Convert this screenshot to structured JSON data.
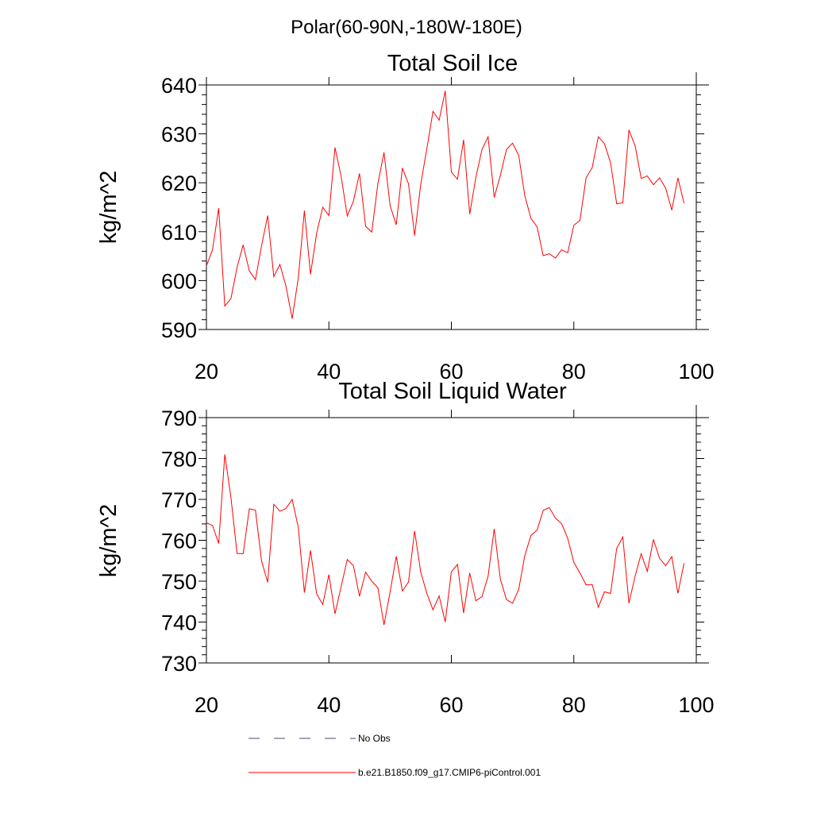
{
  "figure": {
    "supertitle": "Polar(60-90N,-180W-180E)"
  },
  "chart_data": [
    {
      "type": "line",
      "title": "Total Soil Ice",
      "xlabel": "",
      "ylabel": "kg/m^2",
      "xlim": [
        20,
        100
      ],
      "ylim": [
        590,
        640
      ],
      "xticks": [
        20,
        40,
        60,
        80,
        100
      ],
      "yticks": [
        590,
        600,
        610,
        620,
        630,
        640
      ],
      "grid": false,
      "series": [
        {
          "name": "b.e21.B1850.f09_g17.CMIP6-piControl.001",
          "color": "#ff0000",
          "x": [
            20,
            21,
            22,
            23,
            24,
            25,
            26,
            27,
            28,
            29,
            30,
            31,
            32,
            33,
            34,
            35,
            36,
            37,
            38,
            39,
            40,
            41,
            42,
            43,
            44,
            45,
            46,
            47,
            48,
            49,
            50,
            51,
            52,
            53,
            54,
            55,
            56,
            57,
            58,
            59,
            60,
            61,
            62,
            63,
            64,
            65,
            66,
            67,
            68,
            69,
            70,
            71,
            72,
            73,
            74,
            75,
            76,
            77,
            78,
            79,
            80,
            81,
            82,
            83,
            84,
            85,
            86,
            87,
            88,
            89,
            90,
            91,
            92,
            93,
            94,
            95,
            96,
            97,
            98
          ],
          "values": [
            603,
            606.3,
            614.8,
            594.8,
            596.3,
            602.7,
            607.3,
            602,
            600.2,
            607.1,
            613.3,
            600.8,
            603.3,
            598.8,
            592.2,
            600.5,
            614.3,
            601.3,
            609.7,
            615,
            613.3,
            627.2,
            621.3,
            613.2,
            616.2,
            621.9,
            611.1,
            609.9,
            619.8,
            626.2,
            615.3,
            611.4,
            623,
            619.8,
            609.2,
            619.7,
            627,
            634.6,
            632.8,
            638.8,
            622.2,
            620.7,
            628.8,
            613.6,
            621.1,
            626.8,
            629.4,
            617,
            621.5,
            626.8,
            628.1,
            625.6,
            617.3,
            612.7,
            611,
            605.1,
            605.5,
            604.6,
            606.3,
            605.7,
            611.3,
            612.3,
            621,
            623.1,
            629.4,
            628,
            624.1,
            615.7,
            615.9,
            630.8,
            627.6,
            620.9,
            621.4,
            619.6,
            621,
            618.9,
            614.4,
            621,
            615.8
          ]
        }
      ]
    },
    {
      "type": "line",
      "title": "Total Soil Liquid Water",
      "xlabel": "",
      "ylabel": "kg/m^2",
      "xlim": [
        20,
        100
      ],
      "ylim": [
        730,
        790
      ],
      "xticks": [
        20,
        40,
        60,
        80,
        100
      ],
      "yticks": [
        730,
        740,
        750,
        760,
        770,
        780,
        790
      ],
      "grid": false,
      "series": [
        {
          "name": "b.e21.B1850.f09_g17.CMIP6-piControl.001",
          "color": "#ff0000",
          "x": [
            20,
            21,
            22,
            23,
            24,
            25,
            26,
            27,
            28,
            29,
            30,
            31,
            32,
            33,
            34,
            35,
            36,
            37,
            38,
            39,
            40,
            41,
            42,
            43,
            44,
            45,
            46,
            47,
            48,
            49,
            50,
            51,
            52,
            53,
            54,
            55,
            56,
            57,
            58,
            59,
            60,
            61,
            62,
            63,
            64,
            65,
            66,
            67,
            68,
            69,
            70,
            71,
            72,
            73,
            74,
            75,
            76,
            77,
            78,
            79,
            80,
            81,
            82,
            83,
            84,
            85,
            86,
            87,
            88,
            89,
            90,
            91,
            92,
            93,
            94,
            95,
            96,
            97,
            98
          ],
          "values": [
            764.3,
            763.6,
            759.2,
            781,
            770.5,
            756.8,
            756.7,
            767.7,
            767.4,
            755,
            749.7,
            768.8,
            767.1,
            767.8,
            770,
            763.2,
            747.2,
            757.5,
            746.9,
            744.3,
            751.6,
            742,
            748.7,
            755.3,
            753.8,
            746.3,
            752.2,
            750,
            748.4,
            739.3,
            747.4,
            756.1,
            747.6,
            749.8,
            762.3,
            752.2,
            747,
            743,
            746.4,
            740,
            752.3,
            754.1,
            742.2,
            752,
            745.2,
            746.2,
            751.2,
            762.8,
            750.5,
            745.5,
            744.6,
            748,
            756.3,
            761.2,
            762.5,
            767.3,
            768,
            765.4,
            764.1,
            760.5,
            754.6,
            752,
            749.1,
            749.2,
            743.6,
            747.4,
            747,
            758,
            760.8,
            744.6,
            751.2,
            756.7,
            752.4,
            760.2,
            755.6,
            753.8,
            756,
            747,
            754.4
          ]
        }
      ]
    }
  ],
  "legend": {
    "items": [
      {
        "label": "No Obs",
        "color": "#4a4a7a",
        "style": "dashed"
      },
      {
        "label": "b.e21.B1850.f09_g17.CMIP6-piControl.001",
        "color": "#ff0000",
        "style": "solid"
      }
    ]
  }
}
